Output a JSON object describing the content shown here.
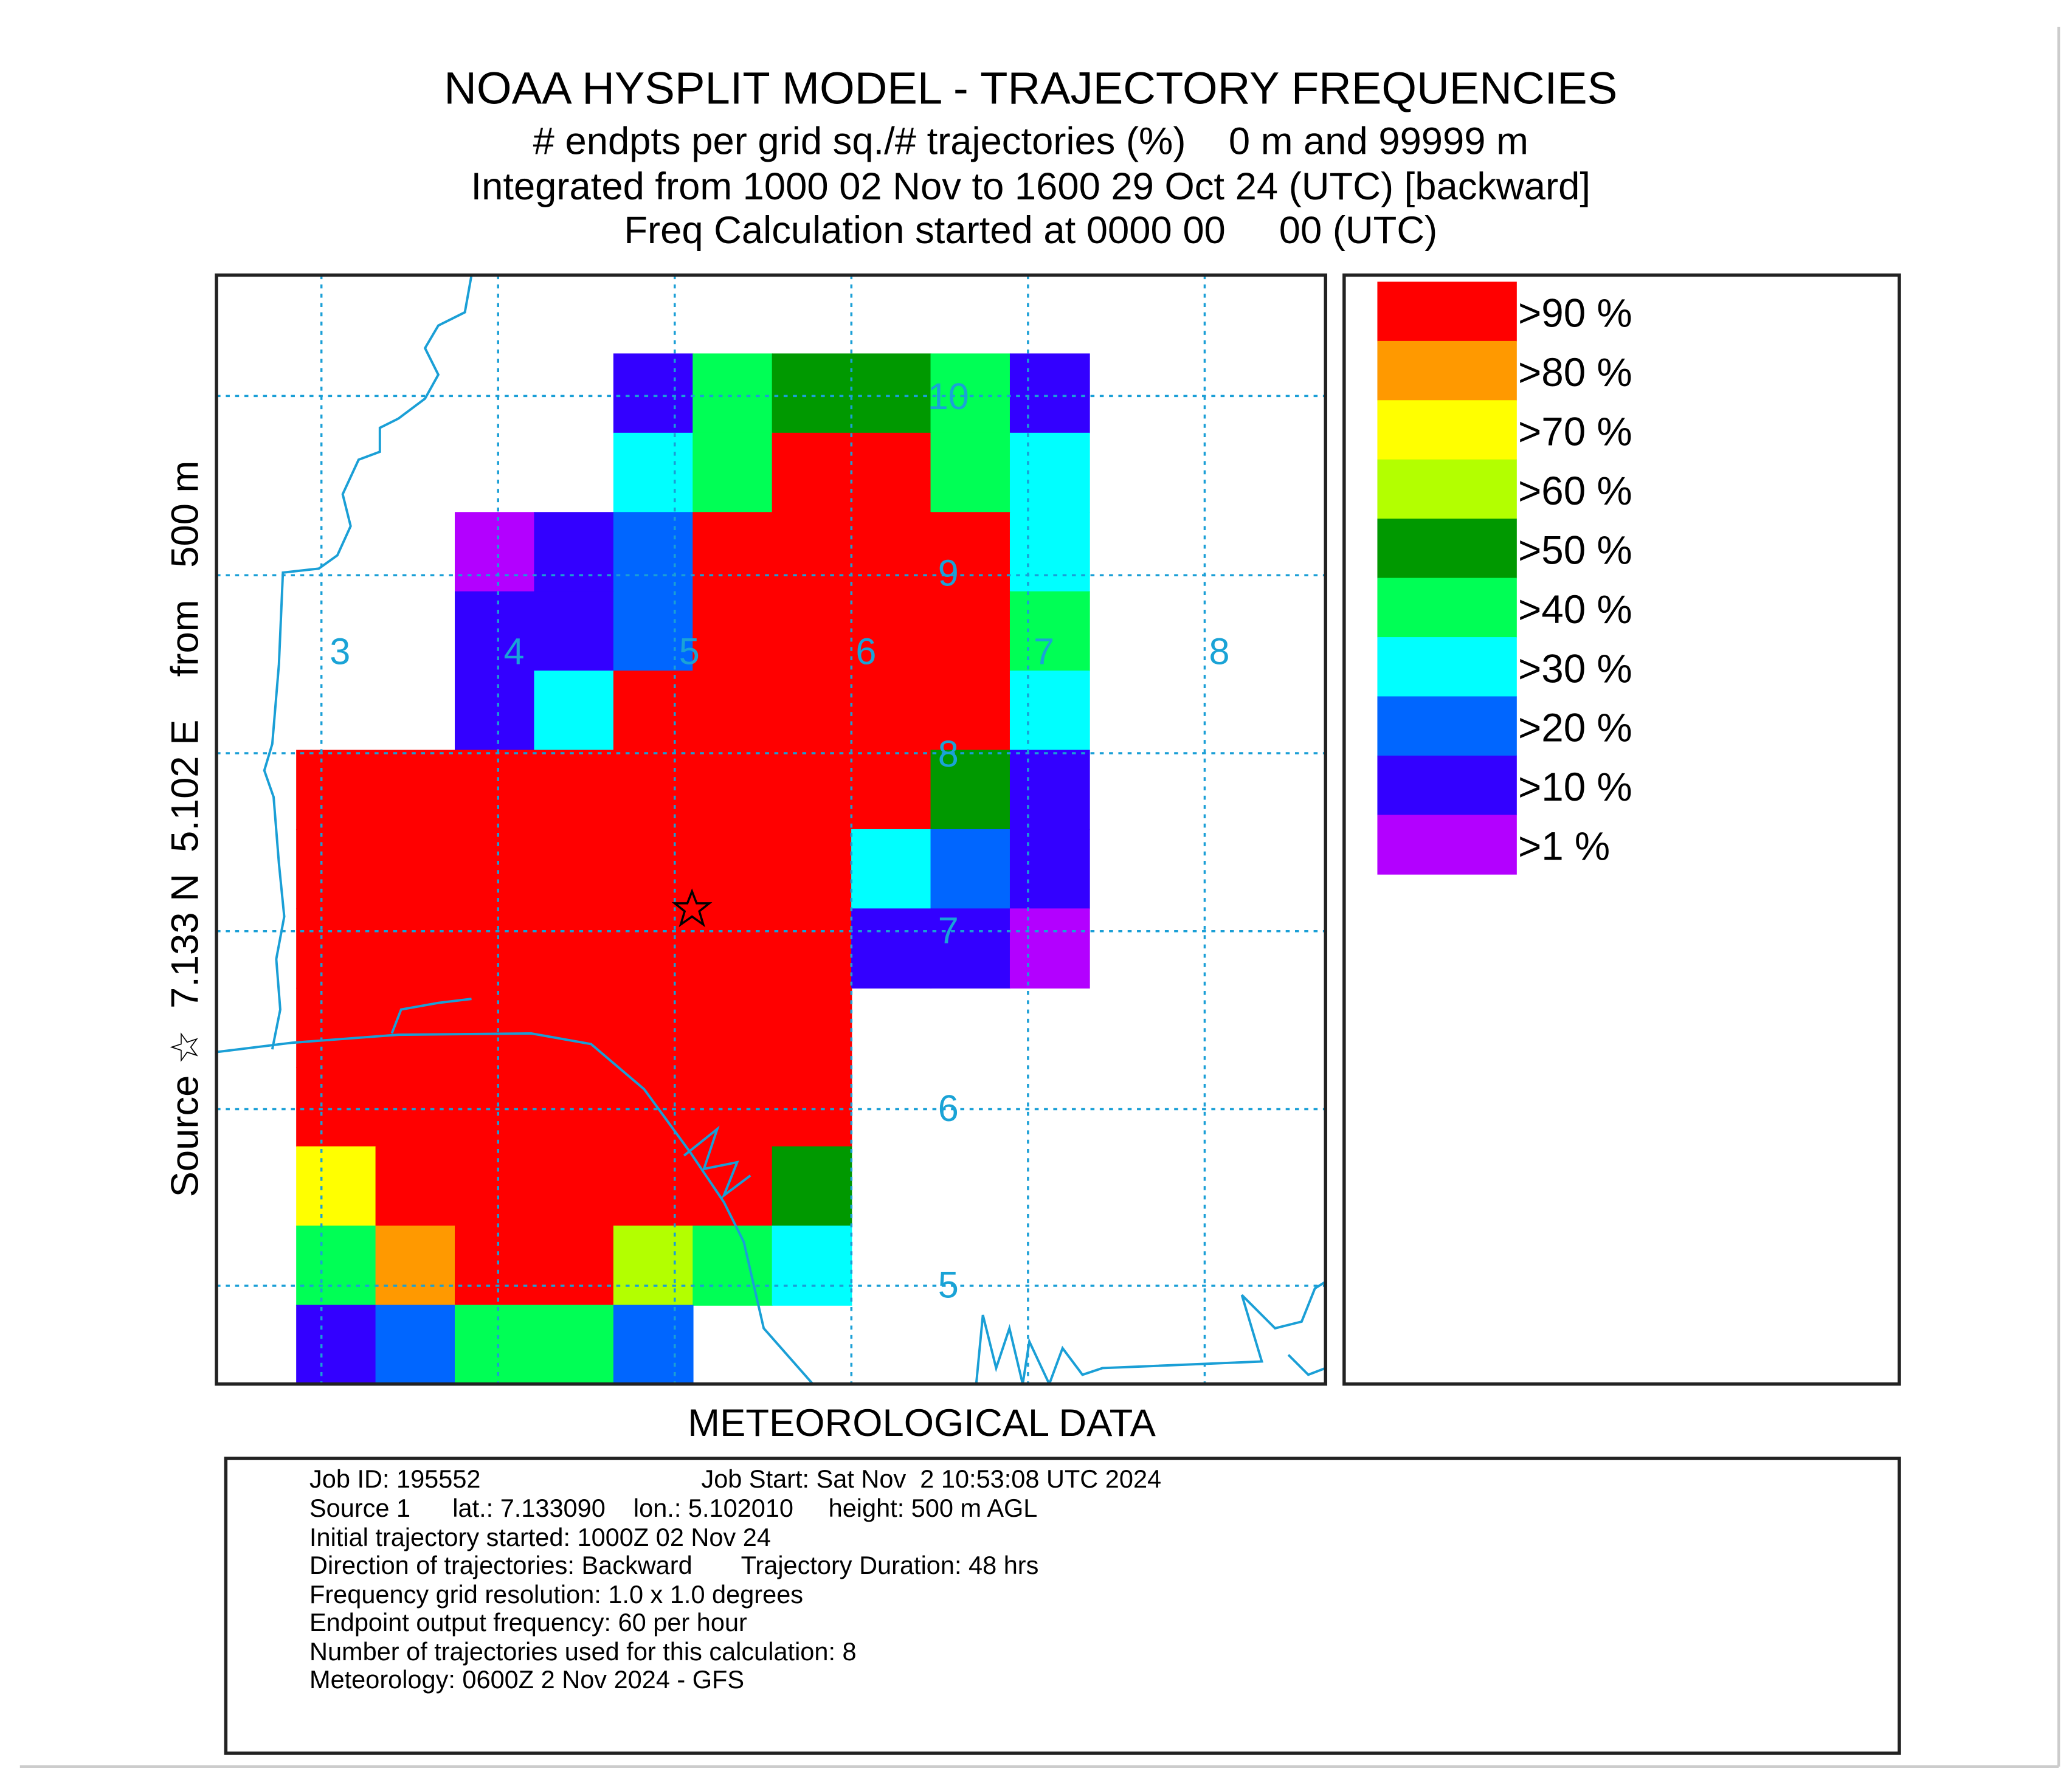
{
  "header": {
    "title": "NOAA HYSPLIT MODEL - TRAJECTORY FREQUENCIES",
    "line2": "# endpts per grid sq./# trajectories (%)    0 m and 99999 m",
    "line3": "Integrated from 1000 02 Nov to 1600 29 Oct 24 (UTC) [backward]",
    "line4": "Freq Calculation started at 0000 00     00 (UTC)"
  },
  "side_label": "Source ☆  7.133 N  5.102 E    from   500 m",
  "footer_label": "METEOROLOGICAL DATA",
  "chart_data": {
    "type": "heatmap",
    "source": {
      "lat": 7.133,
      "lon": 5.102,
      "marker": "star"
    },
    "longitude_labels": [
      "3",
      "4",
      "5",
      "6",
      "7",
      "8"
    ],
    "latitude_labels": [
      "10",
      "9",
      "8",
      "7",
      "6",
      "5"
    ],
    "grid": "dotted, 1 degree",
    "legend_placement": "right",
    "legend": [
      {
        "label": ">90 %",
        "color": "#ff0000"
      },
      {
        "label": ">80 %",
        "color": "#ff9900"
      },
      {
        "label": ">70 %",
        "color": "#ffff00"
      },
      {
        "label": ">60 %",
        "color": "#b3ff00"
      },
      {
        "label": ">50 %",
        "color": "#009900"
      },
      {
        "label": ">40 %",
        "color": "#00ff55"
      },
      {
        "label": ">30 %",
        "color": "#00ffff"
      },
      {
        "label": ">20 %",
        "color": "#0066ff"
      },
      {
        "label": ">10 %",
        "color": "#3300ff"
      },
      {
        "label": ">1 %",
        "color": "#b300ff"
      }
    ],
    "frequency_cells_legend_index": [
      [
        -1,
        -1,
        -1,
        -1,
        8,
        5,
        4,
        4,
        5,
        8
      ],
      [
        -1,
        -1,
        -1,
        -1,
        6,
        5,
        0,
        0,
        5,
        6
      ],
      [
        -1,
        -1,
        9,
        8,
        7,
        0,
        0,
        0,
        0,
        6
      ],
      [
        -1,
        -1,
        8,
        8,
        7,
        0,
        0,
        0,
        0,
        5
      ],
      [
        -1,
        -1,
        8,
        6,
        0,
        0,
        0,
        0,
        0,
        6
      ],
      [
        0,
        0,
        0,
        0,
        0,
        0,
        0,
        0,
        4,
        8
      ],
      [
        0,
        0,
        0,
        0,
        0,
        0,
        0,
        6,
        7,
        8
      ],
      [
        0,
        0,
        0,
        0,
        0,
        0,
        0,
        8,
        8,
        9
      ],
      [
        0,
        0,
        0,
        0,
        0,
        0,
        0,
        -1,
        -1,
        -1
      ],
      [
        0,
        0,
        0,
        0,
        0,
        0,
        0,
        -1,
        -1,
        -1
      ],
      [
        2,
        0,
        0,
        0,
        0,
        0,
        4,
        -1,
        -1,
        -1
      ],
      [
        5,
        1,
        0,
        0,
        3,
        5,
        6,
        -1,
        -1,
        -1
      ],
      [
        8,
        7,
        5,
        5,
        7,
        -1,
        -1,
        -1,
        -1,
        -1
      ]
    ]
  },
  "info": {
    "job_id": "Job ID: 195552",
    "job_start": "Job Start: Sat Nov  2 10:53:08 UTC 2024",
    "source": "Source 1      lat.: 7.133090    lon.: 5.102010     height: 500 m AGL",
    "initial": "Initial trajectory started: 1000Z 02 Nov 24",
    "direction": "Direction of trajectories: Backward       Trajectory Duration: 48 hrs",
    "resolution": "Frequency grid resolution: 1.0 x 1.0 degrees",
    "endpoint": "Endpoint output frequency: 60 per hour",
    "count": "Number of trajectories used for this calculation: 8",
    "meteorology": "Meteorology: 0600Z 2 Nov 2024 - GFS"
  }
}
